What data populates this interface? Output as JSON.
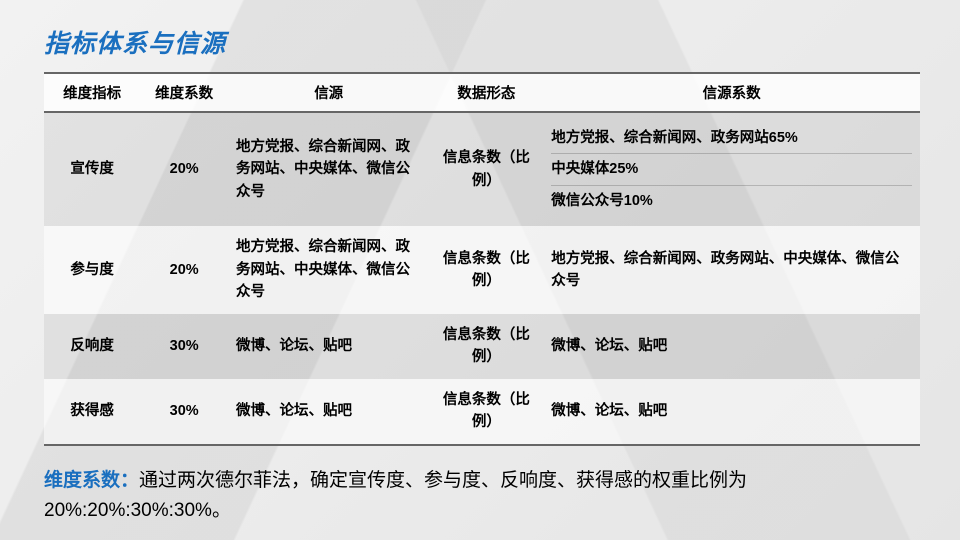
{
  "title": "指标体系与信源",
  "colors": {
    "accent": "#1a6fbf",
    "rule": "#666666",
    "rowOdd": "rgba(0,0,0,.06)",
    "rowEven": "rgba(255,255,255,.55)"
  },
  "table": {
    "columns": [
      "维度指标",
      "维度系数",
      "信源",
      "数据形态",
      "信源系数"
    ],
    "rows": [
      {
        "metric": "宣传度",
        "coef": "20%",
        "source": "地方党报、综合新闻网、政务网站、中央媒体、微信公众号",
        "form": "信息条数（比例）",
        "sourceCoef": [
          "地方党报、综合新闻网、政务网站65%",
          "中央媒体25%",
          "微信公众号10%"
        ]
      },
      {
        "metric": "参与度",
        "coef": "20%",
        "source": "地方党报、综合新闻网、政务网站、中央媒体、微信公众号",
        "form": "信息条数（比例）",
        "sourceCoef": [
          "地方党报、综合新闻网、政务网站、中央媒体、微信公众号"
        ]
      },
      {
        "metric": "反响度",
        "coef": "30%",
        "source": "微博、论坛、贴吧",
        "form": "信息条数（比例）",
        "sourceCoef": [
          "微博、论坛、贴吧"
        ]
      },
      {
        "metric": "获得感",
        "coef": "30%",
        "source": "微博、论坛、贴吧",
        "form": "信息条数（比例）",
        "sourceCoef": [
          "微博、论坛、贴吧"
        ]
      }
    ]
  },
  "footer": {
    "label": "维度系数：",
    "text": "通过两次德尔菲法，确定宣传度、参与度、反响度、获得感的权重比例为20%:20%:30%:30%。"
  }
}
